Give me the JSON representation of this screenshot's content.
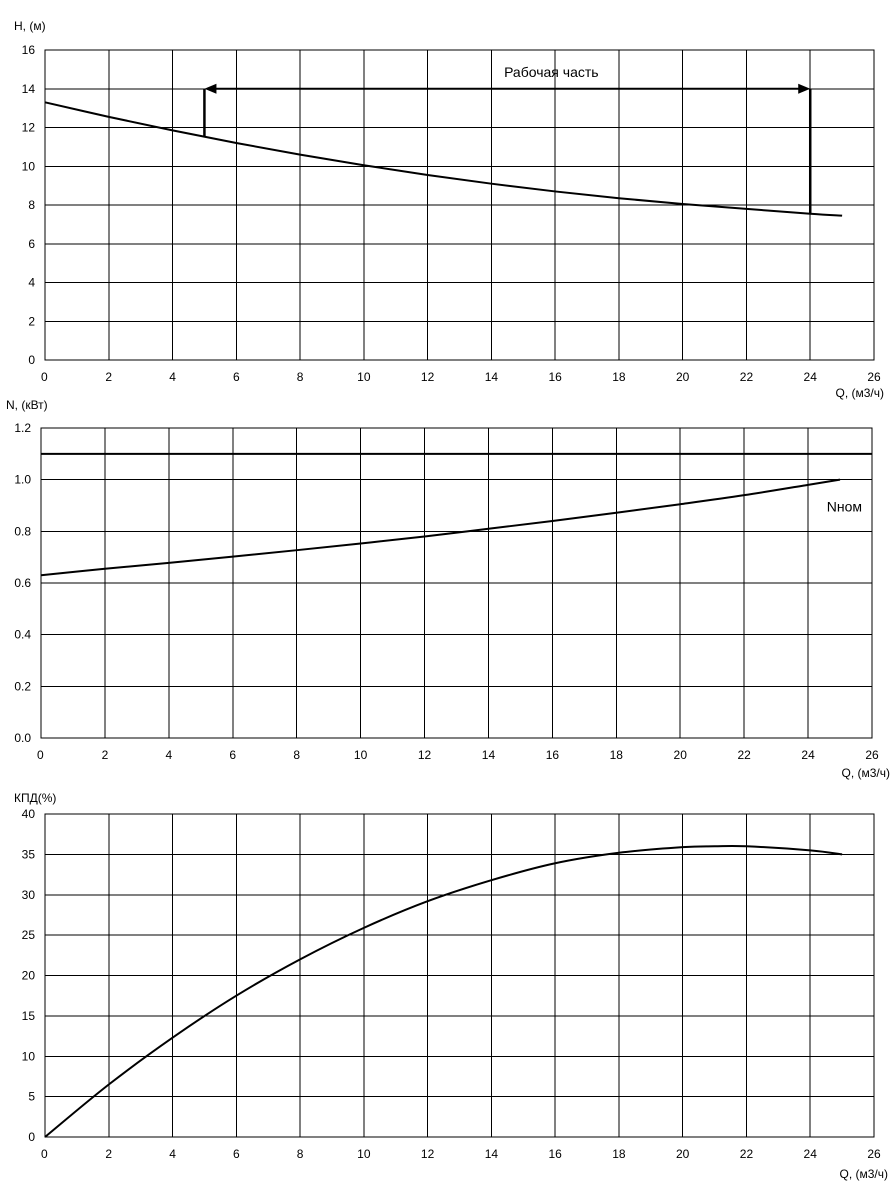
{
  "chart_data": [
    {
      "type": "line",
      "ylabel": "H, (м)",
      "xlabel": "Q, (м3/ч)",
      "xlim": [
        0,
        26
      ],
      "ylim": [
        0,
        16
      ],
      "xticks": [
        "0",
        "2",
        "4",
        "6",
        "8",
        "10",
        "12",
        "14",
        "16",
        "18",
        "20",
        "22",
        "24",
        "26"
      ],
      "yticks": [
        "0",
        "2",
        "4",
        "6",
        "8",
        "10",
        "12",
        "14",
        "16"
      ],
      "grid": true,
      "series": [
        {
          "x": [
            0,
            2,
            4,
            6,
            8,
            10,
            12,
            14,
            16,
            18,
            20,
            22,
            24,
            25
          ],
          "y": [
            13.3,
            12.55,
            11.85,
            11.2,
            10.6,
            10.05,
            9.55,
            9.1,
            8.7,
            8.35,
            8.05,
            7.8,
            7.55,
            7.45
          ]
        }
      ],
      "annotations": [
        {
          "text": "Рабочая часть",
          "x_range": [
            5,
            24
          ],
          "y_top": 14,
          "y_bottom_left": 11.5,
          "y_bottom_right": 7.55
        }
      ]
    },
    {
      "type": "line",
      "ylabel": "N, (кВт)",
      "xlabel": "Q, (м3/ч)",
      "xlim": [
        0,
        26
      ],
      "ylim": [
        0,
        1.2
      ],
      "xticks": [
        "0",
        "2",
        "4",
        "6",
        "8",
        "10",
        "12",
        "14",
        "16",
        "18",
        "20",
        "22",
        "24",
        "26"
      ],
      "yticks": [
        "0.0",
        "0.2",
        "0.4",
        "0.6",
        "0.8",
        "1.0",
        "1.2"
      ],
      "grid": true,
      "series": [
        {
          "x": [
            0,
            2,
            4,
            6,
            8,
            10,
            12,
            14,
            16,
            18,
            20,
            22,
            24,
            25
          ],
          "y": [
            0.63,
            0.655,
            0.678,
            0.702,
            0.727,
            0.753,
            0.78,
            0.81,
            0.84,
            0.872,
            0.905,
            0.94,
            0.98,
            1.0
          ]
        }
      ],
      "hlines": [
        {
          "y": 1.1,
          "label": "Nном"
        }
      ]
    },
    {
      "type": "line",
      "ylabel": "КПД(%)",
      "xlabel": "Q, (м3/ч)",
      "xlim": [
        0,
        26
      ],
      "ylim": [
        0,
        40
      ],
      "xticks": [
        "0",
        "2",
        "4",
        "6",
        "8",
        "10",
        "12",
        "14",
        "16",
        "18",
        "20",
        "22",
        "24",
        "26"
      ],
      "yticks": [
        "0",
        "5",
        "10",
        "15",
        "20",
        "25",
        "30",
        "35",
        "40"
      ],
      "grid": true,
      "series": [
        {
          "x": [
            0,
            2,
            4,
            6,
            8,
            10,
            12,
            14,
            16,
            18,
            20,
            21,
            22,
            24,
            25
          ],
          "y": [
            0,
            6.5,
            12.3,
            17.5,
            22,
            25.9,
            29.2,
            31.8,
            33.9,
            35.2,
            35.9,
            36,
            36,
            35.5,
            35
          ]
        }
      ]
    }
  ]
}
